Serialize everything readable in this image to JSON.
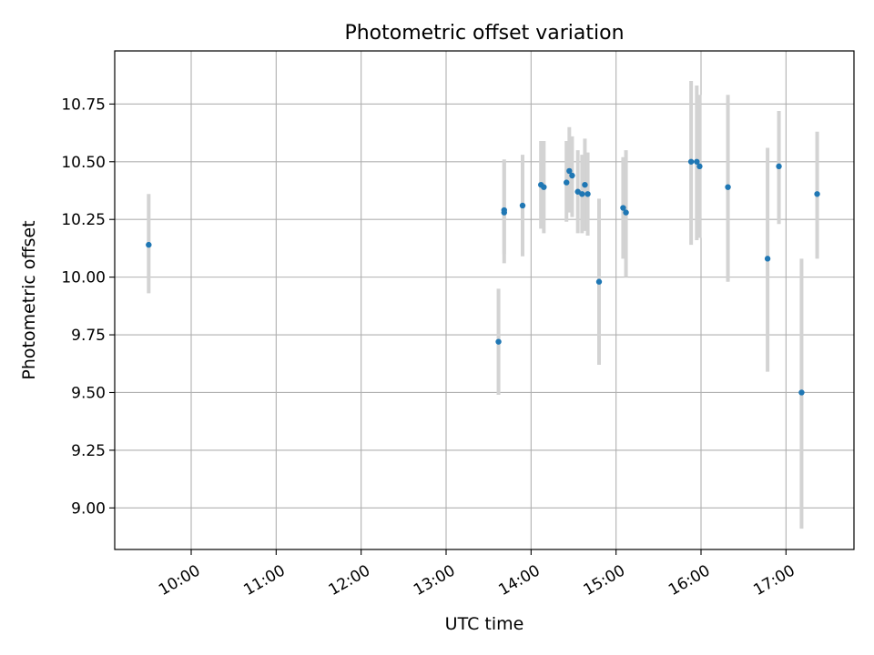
{
  "chart_data": {
    "type": "scatter",
    "title": "Photometric offset variation",
    "xlabel": "UTC time",
    "ylabel": "Photometric offset",
    "x_is_time": true,
    "xlim": [
      "09:06",
      "17:48"
    ],
    "ylim": [
      8.82,
      10.98
    ],
    "x_ticks": [
      "10:00",
      "11:00",
      "12:00",
      "13:00",
      "14:00",
      "15:00",
      "16:00",
      "17:00"
    ],
    "y_ticks": [
      9.0,
      9.25,
      9.5,
      9.75,
      10.0,
      10.25,
      10.5,
      10.75
    ],
    "y_tick_labels": [
      "9.00",
      "9.25",
      "9.50",
      "9.75",
      "10.00",
      "10.25",
      "10.50",
      "10.75"
    ],
    "grid": true,
    "point_color": "#1f77b4",
    "errorbar_color": "#d3d3d3",
    "points": [
      {
        "t": "09:30",
        "y": 10.14,
        "lo": 9.93,
        "hi": 10.36
      },
      {
        "t": "13:37",
        "y": 9.72,
        "lo": 9.49,
        "hi": 9.95
      },
      {
        "t": "13:41",
        "y": 10.28,
        "lo": 10.06,
        "hi": 10.51
      },
      {
        "t": "13:41",
        "y": 10.29,
        "lo": 10.1,
        "hi": 10.5
      },
      {
        "t": "13:54",
        "y": 10.31,
        "lo": 10.09,
        "hi": 10.53
      },
      {
        "t": "14:07",
        "y": 10.4,
        "lo": 10.21,
        "hi": 10.59
      },
      {
        "t": "14:09",
        "y": 10.39,
        "lo": 10.19,
        "hi": 10.59
      },
      {
        "t": "14:25",
        "y": 10.41,
        "lo": 10.24,
        "hi": 10.59
      },
      {
        "t": "14:27",
        "y": 10.46,
        "lo": 10.28,
        "hi": 10.65
      },
      {
        "t": "14:29",
        "y": 10.44,
        "lo": 10.26,
        "hi": 10.61
      },
      {
        "t": "14:33",
        "y": 10.37,
        "lo": 10.19,
        "hi": 10.55
      },
      {
        "t": "14:36",
        "y": 10.36,
        "lo": 10.19,
        "hi": 10.53
      },
      {
        "t": "14:38",
        "y": 10.4,
        "lo": 10.2,
        "hi": 10.6
      },
      {
        "t": "14:40",
        "y": 10.36,
        "lo": 10.18,
        "hi": 10.54
      },
      {
        "t": "14:48",
        "y": 9.98,
        "lo": 9.62,
        "hi": 10.34
      },
      {
        "t": "15:05",
        "y": 10.3,
        "lo": 10.08,
        "hi": 10.52
      },
      {
        "t": "15:07",
        "y": 10.28,
        "lo": 10.0,
        "hi": 10.55
      },
      {
        "t": "15:53",
        "y": 10.5,
        "lo": 10.14,
        "hi": 10.85
      },
      {
        "t": "15:57",
        "y": 10.5,
        "lo": 10.16,
        "hi": 10.83
      },
      {
        "t": "15:59",
        "y": 10.48,
        "lo": 10.17,
        "hi": 10.79
      },
      {
        "t": "16:19",
        "y": 10.39,
        "lo": 9.98,
        "hi": 10.79
      },
      {
        "t": "16:47",
        "y": 10.08,
        "lo": 9.59,
        "hi": 10.56
      },
      {
        "t": "16:55",
        "y": 10.48,
        "lo": 10.23,
        "hi": 10.72
      },
      {
        "t": "17:11",
        "y": 9.5,
        "lo": 8.91,
        "hi": 10.08
      },
      {
        "t": "17:22",
        "y": 10.36,
        "lo": 10.08,
        "hi": 10.63
      }
    ]
  }
}
